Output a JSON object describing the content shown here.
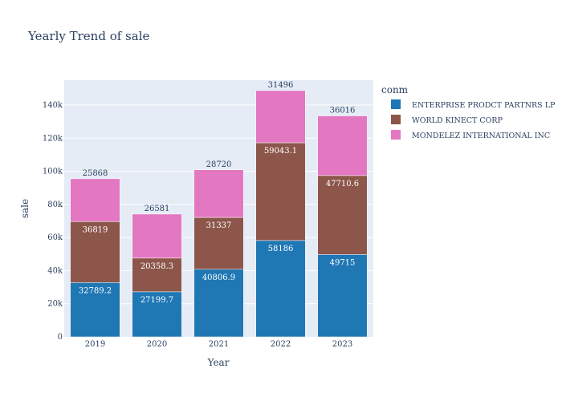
{
  "chart_data": {
    "type": "bar",
    "barmode": "stack",
    "title": "Yearly Trend of sale",
    "xlabel": "Year",
    "ylabel": "sale",
    "categories": [
      "2019",
      "2020",
      "2021",
      "2022",
      "2023"
    ],
    "ylim": [
      0,
      155000
    ],
    "yticks": [
      0,
      20000,
      40000,
      60000,
      80000,
      100000,
      120000,
      140000
    ],
    "ytick_labels": [
      "0",
      "20k",
      "40k",
      "60k",
      "80k",
      "100k",
      "120k",
      "140k"
    ],
    "legend_title": "conm",
    "legend_position": "top-right",
    "grid": true,
    "series": [
      {
        "name": "ENTERPRISE PRODCT PARTNRS LP",
        "color": "#1f77b4",
        "values": [
          32789.2,
          27199.7,
          40806.9,
          58186,
          49715
        ],
        "labels": [
          "32789.2",
          "27199.7",
          "40806.9",
          "58186",
          "49715"
        ]
      },
      {
        "name": "WORLD KINECT CORP",
        "color": "#8c564b",
        "values": [
          36819,
          20358.3,
          31337,
          59043.1,
          47710.6
        ],
        "labels": [
          "36819",
          "20358.3",
          "31337",
          "59043.1",
          "47710.6"
        ]
      },
      {
        "name": "MONDELEZ INTERNATIONAL INC",
        "color": "#e377c2",
        "values": [
          25868,
          26581,
          28720,
          31496,
          36016
        ],
        "labels": [
          "25868",
          "26581",
          "28720",
          "31496",
          "36016"
        ]
      }
    ]
  }
}
